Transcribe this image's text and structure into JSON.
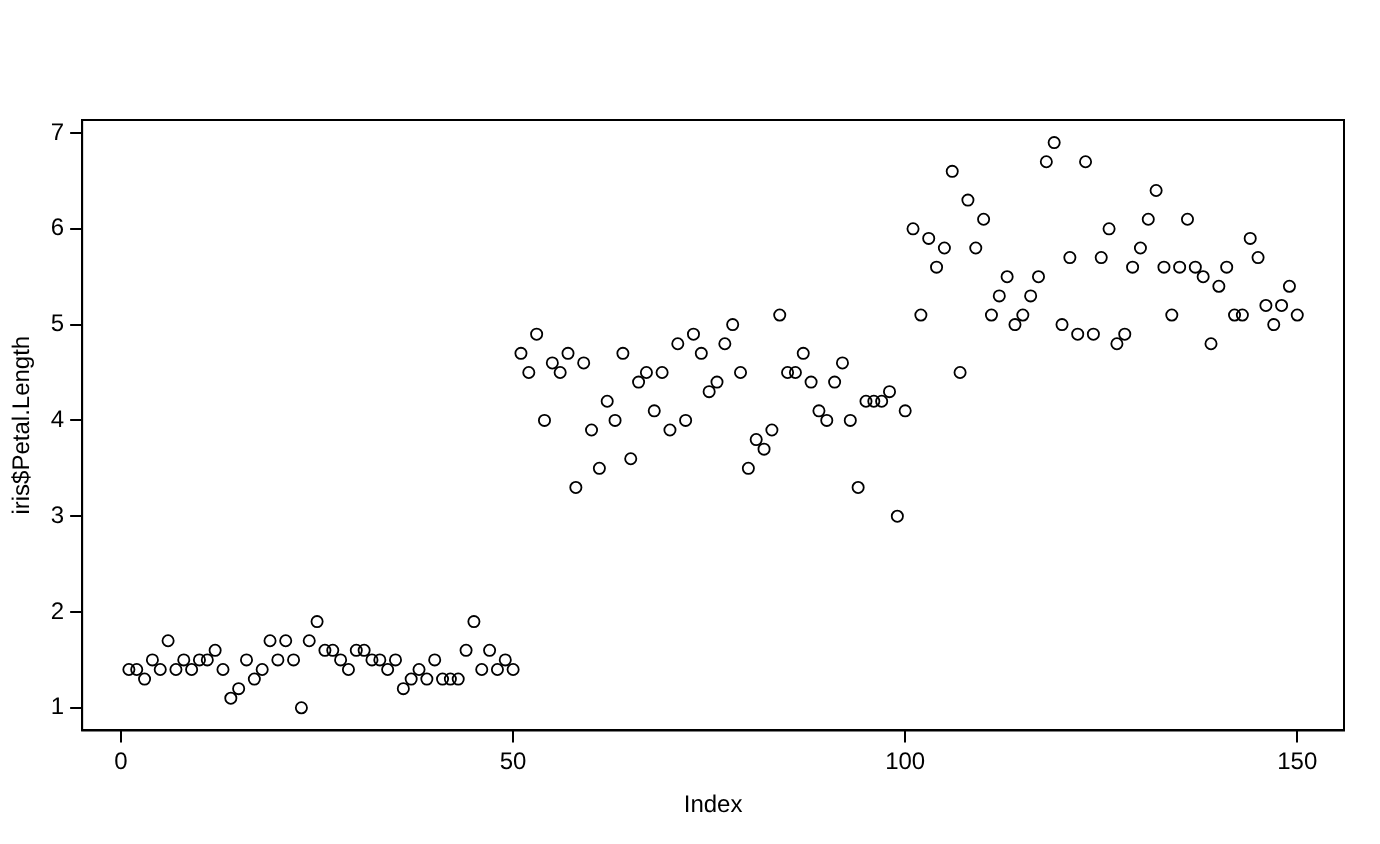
{
  "chart_data": {
    "type": "scatter",
    "xlabel": "Index",
    "ylabel": "iris$Petal.Length",
    "x": [
      1,
      2,
      3,
      4,
      5,
      6,
      7,
      8,
      9,
      10,
      11,
      12,
      13,
      14,
      15,
      16,
      17,
      18,
      19,
      20,
      21,
      22,
      23,
      24,
      25,
      26,
      27,
      28,
      29,
      30,
      31,
      32,
      33,
      34,
      35,
      36,
      37,
      38,
      39,
      40,
      41,
      42,
      43,
      44,
      45,
      46,
      47,
      48,
      49,
      50,
      51,
      52,
      53,
      54,
      55,
      56,
      57,
      58,
      59,
      60,
      61,
      62,
      63,
      64,
      65,
      66,
      67,
      68,
      69,
      70,
      71,
      72,
      73,
      74,
      75,
      76,
      77,
      78,
      79,
      80,
      81,
      82,
      83,
      84,
      85,
      86,
      87,
      88,
      89,
      90,
      91,
      92,
      93,
      94,
      95,
      96,
      97,
      98,
      99,
      100,
      101,
      102,
      103,
      104,
      105,
      106,
      107,
      108,
      109,
      110,
      111,
      112,
      113,
      114,
      115,
      116,
      117,
      118,
      119,
      120,
      121,
      122,
      123,
      124,
      125,
      126,
      127,
      128,
      129,
      130,
      131,
      132,
      133,
      134,
      135,
      136,
      137,
      138,
      139,
      140,
      141,
      142,
      143,
      144,
      145,
      146,
      147,
      148,
      149,
      150
    ],
    "series": [
      {
        "color": "#000000",
        "values": [
          1.4,
          1.4,
          1.3,
          1.5,
          1.4,
          1.7,
          1.4,
          1.5,
          1.4,
          1.5,
          1.5,
          1.6,
          1.4,
          1.1,
          1.2,
          1.5,
          1.3,
          1.4,
          1.7,
          1.5,
          1.7,
          1.5,
          1.0,
          1.7,
          1.9,
          1.6,
          1.6,
          1.5,
          1.4,
          1.6,
          1.6,
          1.5,
          1.5,
          1.4,
          1.5,
          1.2,
          1.3,
          1.4,
          1.3,
          1.5,
          1.3,
          1.3,
          1.3,
          1.6,
          1.9,
          1.4,
          1.6,
          1.4,
          1.5,
          1.4,
          4.7,
          4.5,
          4.9,
          4.0,
          4.6,
          4.5,
          4.7,
          3.3,
          4.6,
          3.9,
          3.5,
          4.2,
          4.0,
          4.7,
          3.6,
          4.4,
          4.5,
          4.1,
          4.5,
          3.9,
          4.8,
          4.0,
          4.9,
          4.7,
          4.3,
          4.4,
          4.8,
          5.0,
          4.5,
          3.5,
          3.8,
          3.7,
          3.9,
          5.1,
          4.5,
          4.5,
          4.7,
          4.4,
          4.1,
          4.0,
          4.4,
          4.6,
          4.0,
          3.3,
          4.2,
          4.2,
          4.2,
          4.3,
          3.0,
          4.1,
          6.0,
          5.1,
          5.9,
          5.6,
          5.8,
          6.6,
          4.5,
          6.3,
          5.8,
          6.1,
          5.1,
          5.3,
          5.5,
          5.0,
          5.1,
          5.3,
          5.5,
          6.7,
          6.9,
          5.0,
          5.7,
          4.9,
          6.7,
          4.9,
          5.7,
          6.0,
          4.8,
          4.9,
          5.6,
          5.8,
          6.1,
          6.4,
          5.6,
          5.1,
          5.6,
          6.1,
          5.6,
          5.5,
          4.8,
          5.4,
          5.6,
          5.1,
          5.1,
          5.9,
          5.7,
          5.2,
          5.0,
          5.2,
          5.4,
          5.1
        ]
      }
    ],
    "xlim": [
      -4.96,
      155.96
    ],
    "xticks": [
      0,
      50,
      100,
      150
    ],
    "ylim": [
      0.764,
      7.136
    ],
    "yticks": [
      1,
      2,
      3,
      4,
      5,
      6,
      7
    ],
    "marker": "circle",
    "grid": false,
    "legend": false
  }
}
